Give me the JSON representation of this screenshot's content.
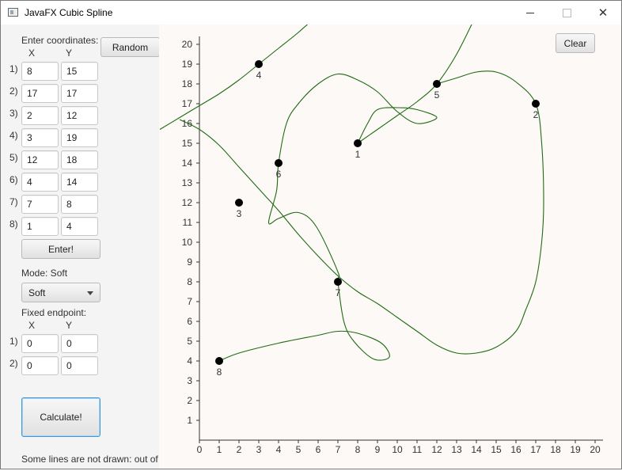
{
  "window": {
    "title": "JavaFX Cubic Spline",
    "controls": [
      "minimize-icon",
      "maximize-icon",
      "close-icon"
    ]
  },
  "panel": {
    "coords_label": "Enter coordinates:",
    "x_header": "X",
    "y_header": "Y",
    "random_label": "Random",
    "rows": [
      {
        "label": "1)",
        "x": "8",
        "y": "15"
      },
      {
        "label": "2)",
        "x": "17",
        "y": "17"
      },
      {
        "label": "3)",
        "x": "2",
        "y": "12"
      },
      {
        "label": "4)",
        "x": "3",
        "y": "19"
      },
      {
        "label": "5)",
        "x": "12",
        "y": "18"
      },
      {
        "label": "6)",
        "x": "4",
        "y": "14"
      },
      {
        "label": "7)",
        "x": "7",
        "y": "8"
      },
      {
        "label": "8)",
        "x": "1",
        "y": "4"
      }
    ],
    "enter_label": "Enter!",
    "mode_label": "Mode: Soft",
    "mode_value": "Soft",
    "fixed_label": "Fixed endpoint:",
    "fixed_x_header": "X",
    "fixed_y_header": "Y",
    "fixed_rows": [
      {
        "label": "1)",
        "x": "0",
        "y": "0"
      },
      {
        "label": "2)",
        "x": "0",
        "y": "0"
      }
    ],
    "calculate_label": "Calculate!",
    "status": "Some lines are not drawn: out of bounds"
  },
  "plot": {
    "clear_label": "Clear",
    "line_color": "#1f6b12",
    "point_color": "#000000",
    "x_ticks": [
      "0",
      "1",
      "2",
      "3",
      "4",
      "5",
      "6",
      "7",
      "8",
      "9",
      "10",
      "11",
      "12",
      "13",
      "14",
      "15",
      "16",
      "17",
      "18",
      "19",
      "20"
    ],
    "y_ticks": [
      "1",
      "2",
      "3",
      "4",
      "5",
      "6",
      "7",
      "8",
      "9",
      "10",
      "11",
      "12",
      "13",
      "14",
      "15",
      "16",
      "17",
      "18",
      "19",
      "20"
    ],
    "points": [
      {
        "label": "1",
        "x": 8,
        "y": 15
      },
      {
        "label": "2",
        "x": 17,
        "y": 17
      },
      {
        "label": "3",
        "x": 2,
        "y": 12
      },
      {
        "label": "4",
        "x": 3,
        "y": 19
      },
      {
        "label": "5",
        "x": 12,
        "y": 18
      },
      {
        "label": "6",
        "x": 4,
        "y": 14
      },
      {
        "label": "7",
        "x": 7,
        "y": 8
      },
      {
        "label": "8",
        "x": 1,
        "y": 4
      }
    ]
  }
}
